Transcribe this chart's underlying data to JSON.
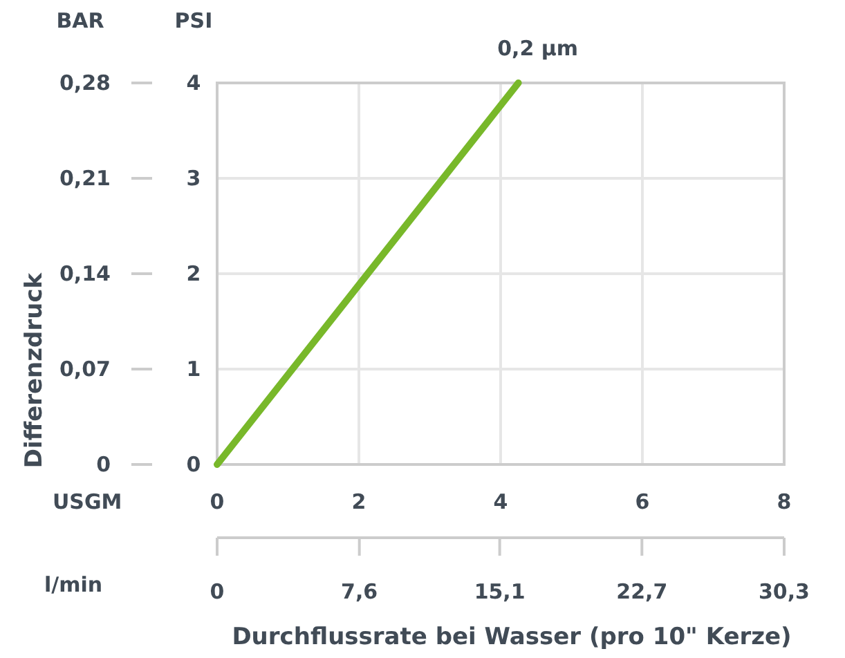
{
  "chart_data": {
    "type": "line",
    "xlabel": "Durchflussrate bei Wasser (pro 10\" Kerze)",
    "y2label": "Differenzdruck",
    "annotations": [
      "BAR",
      "PSI",
      "USGM",
      "l/min"
    ],
    "xlim": [
      0,
      8
    ],
    "xticks": [
      0,
      2,
      4,
      6,
      8
    ],
    "x2lim": [
      0,
      30.3
    ],
    "x2ticks": [
      0,
      {
        "value": 7.6,
        "label": "7,6"
      },
      {
        "value": 15.1,
        "label": "15,1"
      },
      {
        "value": 22.7,
        "label": "22,7"
      },
      {
        "value": 30.3,
        "label": "30,3"
      }
    ],
    "ylim": [
      0,
      4
    ],
    "yticks": [
      0,
      1,
      2,
      3,
      4
    ],
    "y2lim": [
      0,
      0.28
    ],
    "y2ticks": [
      0,
      {
        "value": 0.07,
        "label": "0,07"
      },
      {
        "value": 0.14,
        "label": "0,14"
      },
      {
        "value": 0.21,
        "label": "0,21"
      },
      {
        "value": 0.28,
        "label": "0,28"
      }
    ],
    "grid": true,
    "marker": "none",
    "line_style": "solid",
    "series": [
      {
        "name": "0,2 µm",
        "color": "#78b82a",
        "x": [
          0,
          4.25
        ],
        "values": [
          0,
          4
        ]
      }
    ]
  }
}
